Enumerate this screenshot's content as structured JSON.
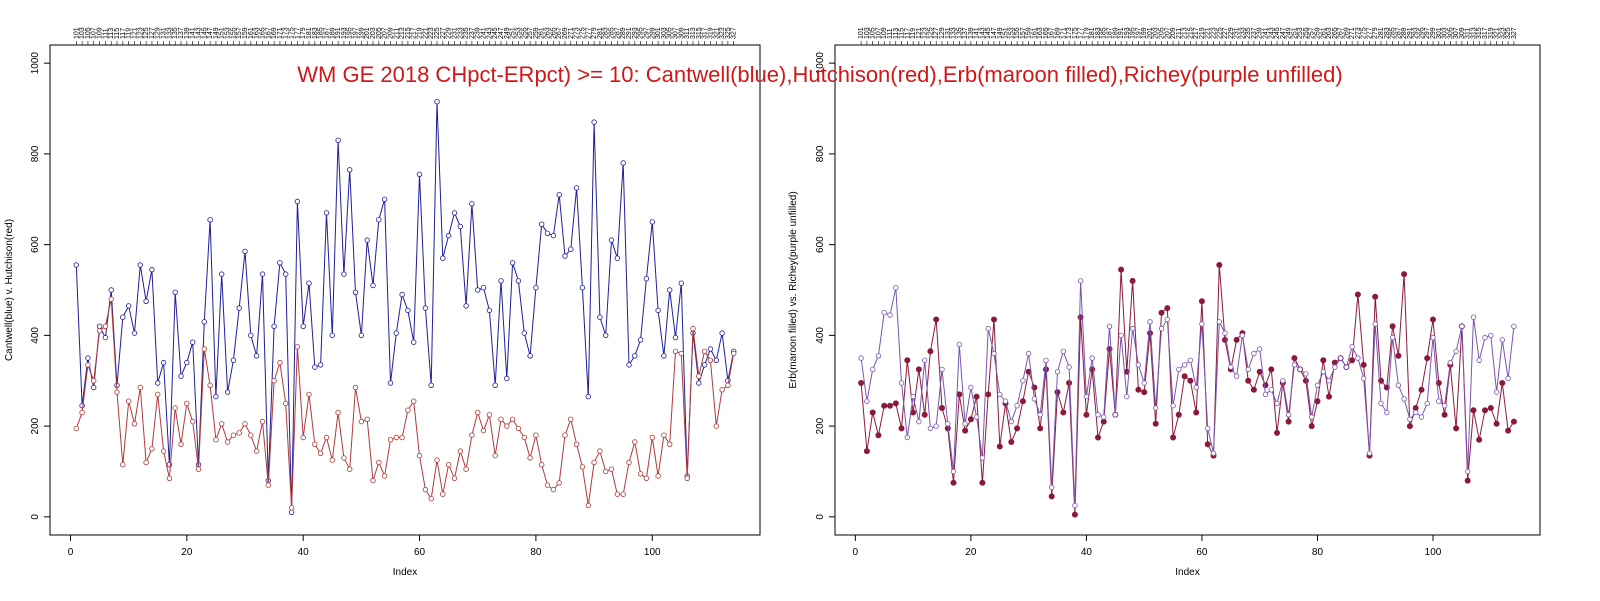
{
  "colors": {
    "cantwell": "#1f1f9a",
    "hutchison": "#b03a3a",
    "erb": "#8b1a3a",
    "richey": "#7a55b0",
    "title": "#d01818"
  },
  "title": "WM GE 2018 CHpct-ERpct) >= 10: Cantwell(blue),Hutchison(red),Erb(maroon filled),Richey(purple unfilled)",
  "chart_data": [
    {
      "type": "line",
      "xlabel": "Index",
      "ylabel": "Cantwell(blue) v. Hutchison(red)",
      "xlim": [
        1,
        114
      ],
      "ylim": [
        0,
        1000
      ],
      "x_ticks": [
        0,
        20,
        40,
        60,
        80,
        100
      ],
      "y_ticks": [
        0,
        200,
        400,
        600,
        800,
        1000
      ],
      "top_tick_labels": [
        "101",
        "103",
        "105",
        "107",
        "109",
        "111",
        "113",
        "115",
        "117",
        "119",
        "121",
        "123",
        "125",
        "127",
        "129",
        "131",
        "133",
        "135",
        "137",
        "139",
        "141",
        "143",
        "145",
        "147",
        "149",
        "151",
        "153",
        "155",
        "157",
        "159",
        "161",
        "163",
        "165",
        "167",
        "169",
        "171",
        "173",
        "175",
        "177",
        "179",
        "181",
        "183",
        "185",
        "187",
        "189",
        "191",
        "193",
        "195",
        "197",
        "199",
        "201",
        "203",
        "205",
        "207",
        "209",
        "211",
        "213",
        "215",
        "217",
        "219",
        "221",
        "223",
        "225",
        "227",
        "229",
        "231",
        "233",
        "235",
        "237",
        "239",
        "241",
        "243",
        "245",
        "247",
        "249",
        "251",
        "253",
        "255",
        "257",
        "259",
        "261",
        "263",
        "265",
        "267",
        "269",
        "271",
        "273",
        "275",
        "277",
        "279",
        "281",
        "283",
        "285",
        "287",
        "289",
        "291",
        "293",
        "295",
        "297",
        "299",
        "301",
        "303",
        "305",
        "307",
        "309",
        "311",
        "313",
        "315",
        "317",
        "319",
        "321",
        "323",
        "325",
        "327"
      ],
      "x": [
        1,
        2,
        3,
        4,
        5,
        6,
        7,
        8,
        9,
        10,
        11,
        12,
        13,
        14,
        15,
        16,
        17,
        18,
        19,
        20,
        21,
        22,
        23,
        24,
        25,
        26,
        27,
        28,
        29,
        30,
        31,
        32,
        33,
        34,
        35,
        36,
        37,
        38,
        39,
        40,
        41,
        42,
        43,
        44,
        45,
        46,
        47,
        48,
        49,
        50,
        51,
        52,
        53,
        54,
        55,
        56,
        57,
        58,
        59,
        60,
        61,
        62,
        63,
        64,
        65,
        66,
        67,
        68,
        69,
        70,
        71,
        72,
        73,
        74,
        75,
        76,
        77,
        78,
        79,
        80,
        81,
        82,
        83,
        84,
        85,
        86,
        87,
        88,
        89,
        90,
        91,
        92,
        93,
        94,
        95,
        96,
        97,
        98,
        99,
        100,
        101,
        102,
        103,
        104,
        105,
        106,
        107,
        108,
        109,
        110,
        111,
        112,
        113,
        114
      ],
      "series": [
        {
          "name": "Cantwell",
          "color": "#1f1f9a",
          "values": [
            555,
            245,
            350,
            285,
            420,
            395,
            500,
            290,
            440,
            465,
            405,
            555,
            475,
            545,
            295,
            340,
            115,
            495,
            310,
            340,
            385,
            115,
            430,
            655,
            265,
            535,
            275,
            345,
            460,
            585,
            400,
            355,
            535,
            80,
            420,
            560,
            535,
            10,
            695,
            420,
            515,
            330,
            335,
            670,
            400,
            830,
            535,
            765,
            495,
            400,
            610,
            510,
            655,
            700,
            295,
            405,
            490,
            455,
            385,
            755,
            460,
            290,
            915,
            570,
            620,
            670,
            640,
            465,
            690,
            500,
            505,
            455,
            290,
            520,
            305,
            560,
            520,
            405,
            355,
            505,
            645,
            625,
            620,
            710,
            575,
            590,
            725,
            505,
            265,
            870,
            440,
            400,
            610,
            570,
            780,
            335,
            355,
            390,
            525,
            650,
            455,
            355,
            500,
            395,
            515,
            90,
            405,
            295,
            335,
            370,
            345,
            405,
            300,
            365
          ]
        },
        {
          "name": "Hutchison",
          "color": "#b03a3a",
          "values": [
            195,
            230,
            335,
            300,
            410,
            420,
            480,
            275,
            115,
            255,
            205,
            285,
            120,
            150,
            270,
            145,
            85,
            240,
            160,
            250,
            210,
            105,
            370,
            290,
            170,
            205,
            165,
            180,
            185,
            205,
            180,
            145,
            210,
            70,
            300,
            340,
            250,
            20,
            375,
            175,
            270,
            160,
            140,
            175,
            125,
            230,
            130,
            105,
            285,
            210,
            215,
            80,
            120,
            90,
            170,
            175,
            175,
            235,
            255,
            135,
            60,
            40,
            125,
            50,
            115,
            85,
            145,
            105,
            180,
            230,
            190,
            225,
            135,
            215,
            200,
            215,
            195,
            175,
            130,
            180,
            115,
            70,
            60,
            75,
            180,
            215,
            160,
            110,
            25,
            120,
            145,
            100,
            105,
            50,
            50,
            120,
            165,
            95,
            85,
            175,
            90,
            180,
            160,
            365,
            360,
            85,
            415,
            310,
            365,
            345,
            200,
            280,
            290,
            360
          ]
        },
        {
          "name": "Erb",
          "color": "#8b1a3a",
          "values": [
            295,
            145,
            230,
            180,
            245,
            245,
            250,
            195,
            345,
            230,
            325,
            225,
            365,
            435,
            240,
            195,
            75,
            270,
            190,
            215,
            265,
            75,
            270,
            435,
            155,
            250,
            165,
            195,
            255,
            320,
            285,
            195,
            325,
            45,
            275,
            230,
            295,
            5,
            440,
            225,
            325,
            175,
            210,
            370,
            225,
            545,
            320,
            520,
            280,
            275,
            405,
            205,
            450,
            460,
            175,
            225,
            310,
            300,
            230,
            475,
            160,
            135,
            555,
            390,
            325,
            390,
            405,
            300,
            280,
            320,
            290,
            325,
            185,
            295,
            210,
            350,
            325,
            300,
            200,
            255,
            345,
            265,
            340,
            350,
            330,
            345,
            490,
            335,
            135,
            485,
            300,
            285,
            420,
            355,
            535,
            200,
            240,
            280,
            350,
            435,
            295,
            225,
            335,
            195,
            420,
            80,
            235,
            170,
            235,
            240,
            205,
            295,
            190,
            210
          ]
        },
        {
          "name": "Richey",
          "color": "#7a55b0",
          "values": [
            350,
            255,
            325,
            355,
            450,
            445,
            505,
            295,
            175,
            265,
            210,
            345,
            195,
            200,
            325,
            205,
            100,
            380,
            205,
            285,
            220,
            130,
            415,
            360,
            270,
            255,
            210,
            245,
            300,
            360,
            260,
            225,
            345,
            65,
            320,
            365,
            330,
            25,
            520,
            265,
            350,
            225,
            220,
            420,
            225,
            400,
            265,
            415,
            335,
            295,
            430,
            240,
            415,
            435,
            245,
            325,
            335,
            345,
            285,
            425,
            195,
            140,
            430,
            405,
            330,
            310,
            400,
            325,
            360,
            370,
            270,
            280,
            250,
            300,
            225,
            335,
            325,
            315,
            220,
            290,
            320,
            300,
            330,
            350,
            330,
            375,
            350,
            305,
            140,
            425,
            250,
            230,
            395,
            290,
            260,
            215,
            230,
            220,
            250,
            395,
            255,
            245,
            340,
            365,
            420,
            100,
            440,
            345,
            395,
            400,
            275,
            390,
            305,
            420
          ]
        }
      ]
    },
    {
      "type": "line",
      "xlabel": "Index",
      "ylabel": "Erb(maroon filled) vs. Richey(purple unfilled)",
      "xlim": [
        1,
        114
      ],
      "ylim": [
        0,
        1000
      ],
      "x_ticks": [
        0,
        20,
        40,
        60,
        80,
        100
      ],
      "y_ticks": [
        0,
        200,
        400,
        600,
        800,
        1000
      ],
      "series_ref": [
        "Erb",
        "Richey"
      ]
    }
  ]
}
